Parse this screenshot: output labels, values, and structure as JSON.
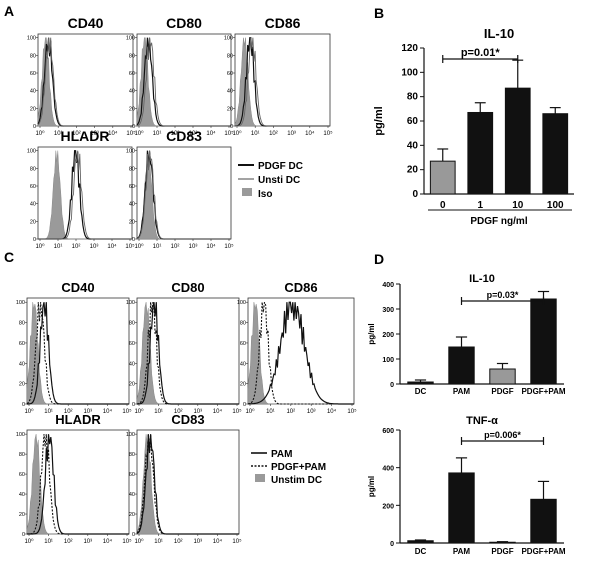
{
  "figure": {
    "panel_labels": {
      "A": "A",
      "B": "B",
      "C": "C",
      "D": "D"
    }
  },
  "chart_data": [
    {
      "panel": "A",
      "type": "histogram_overlay",
      "histogram_tick_labels": [
        "10⁰",
        "10¹",
        "10²",
        "10³",
        "10⁴",
        "10⁵"
      ],
      "y_tick_labels": [
        "0",
        "20",
        "40",
        "60",
        "80",
        "100"
      ],
      "legend": [
        {
          "label": "PDGF DC",
          "style": "black-thick",
          "color": "#111111"
        },
        {
          "label": "Unsti DC",
          "style": "gray-thin",
          "color": "#666666"
        },
        {
          "label": "Iso",
          "style": "gray-fill",
          "color": "#9a9a9a"
        }
      ],
      "plots": [
        {
          "marker": "CD40",
          "iso_peak_log": 0.4,
          "curves": [
            {
              "style": "black-thick",
              "peak_log": 0.55
            },
            {
              "style": "gray-thin",
              "peak_log": 0.6
            }
          ]
        },
        {
          "marker": "CD80",
          "iso_peak_log": 0.4,
          "curves": [
            {
              "style": "black-thick",
              "peak_log": 0.6
            },
            {
              "style": "gray-thin",
              "peak_log": 0.7
            }
          ]
        },
        {
          "marker": "CD86",
          "iso_peak_log": 0.5,
          "curves": [
            {
              "style": "black-thick",
              "peak_log": 0.8
            },
            {
              "style": "gray-thin",
              "peak_log": 0.9
            }
          ]
        },
        {
          "marker": "HLADR",
          "iso_peak_log": 1.0,
          "curves": [
            {
              "style": "black-thick",
              "peak_log": 2.0
            },
            {
              "style": "gray-thin",
              "peak_log": 2.1
            }
          ]
        },
        {
          "marker": "CD83",
          "iso_peak_log": 0.6,
          "curves": [
            {
              "style": "black-thick",
              "peak_log": 0.65
            },
            {
              "style": "gray-thin",
              "peak_log": 0.68
            }
          ]
        }
      ]
    },
    {
      "panel": "B",
      "type": "bar",
      "title": "IL-10",
      "xlabel": "PDGF ng/ml",
      "ylabel": "pg/ml",
      "categories": [
        "0",
        "1",
        "10",
        "100"
      ],
      "values": [
        27,
        67,
        87,
        66
      ],
      "errors": [
        10,
        8,
        23,
        5
      ],
      "bar_colors": [
        "#999999",
        "#111111",
        "#111111",
        "#111111"
      ],
      "ylim": [
        0,
        120
      ],
      "yticks": [
        0,
        20,
        40,
        60,
        80,
        100,
        120
      ],
      "annotation": {
        "text": "p=0.01*",
        "from": 0,
        "to": 2
      }
    },
    {
      "panel": "C",
      "type": "histogram_overlay",
      "histogram_tick_labels": [
        "10⁰",
        "10¹",
        "10²",
        "10³",
        "10⁴",
        "10⁵"
      ],
      "y_tick_labels": [
        "0",
        "20",
        "40",
        "60",
        "80",
        "100"
      ],
      "legend": [
        {
          "label": "PAM",
          "style": "solid",
          "color": "#111111"
        },
        {
          "label": "PDGF+PAM",
          "style": "dotted",
          "color": "#111111"
        },
        {
          "label": "Unstim DC",
          "style": "gray-fill",
          "color": "#9a9a9a"
        }
      ],
      "plots": [
        {
          "marker": "CD40",
          "iso_peak_log": 0.35,
          "curves": [
            {
              "style": "solid",
              "peak_log": 0.85
            },
            {
              "style": "dotted",
              "peak_log": 0.65
            }
          ]
        },
        {
          "marker": "CD80",
          "iso_peak_log": 0.45,
          "curves": [
            {
              "style": "solid",
              "peak_log": 0.85
            },
            {
              "style": "dotted",
              "peak_log": 0.75
            }
          ]
        },
        {
          "marker": "CD86",
          "iso_peak_log": 0.35,
          "curves": [
            {
              "style": "solid",
              "peak_log": 2.1
            },
            {
              "style": "dotted",
              "peak_log": 0.75
            }
          ]
        },
        {
          "marker": "HLADR",
          "iso_peak_log": 0.45,
          "curves": [
            {
              "style": "solid",
              "peak_log": 1.1
            },
            {
              "style": "dotted",
              "peak_log": 0.9
            }
          ]
        },
        {
          "marker": "CD83",
          "iso_peak_log": 0.5,
          "curves": [
            {
              "style": "solid",
              "peak_log": 0.65
            },
            {
              "style": "dotted",
              "peak_log": 0.6
            }
          ]
        }
      ]
    },
    {
      "panel": "D",
      "type": "bar",
      "title": "IL-10",
      "xlabel": "",
      "ylabel": "pg/ml",
      "categories": [
        "DC",
        "PAM",
        "PDGF",
        "PDGF+PAM"
      ],
      "values": [
        8,
        148,
        60,
        340
      ],
      "errors": [
        8,
        40,
        22,
        30
      ],
      "bar_colors": [
        "#111111",
        "#111111",
        "#999999",
        "#111111"
      ],
      "ylim": [
        0,
        400
      ],
      "yticks": [
        0,
        100,
        200,
        300,
        400
      ],
      "annotation": {
        "text": "p=0.03*",
        "from": 1,
        "to": 3
      }
    },
    {
      "panel": "D",
      "type": "bar",
      "title": "TNF-α",
      "xlabel": "",
      "ylabel": "pg/ml",
      "categories": [
        "DC",
        "PAM",
        "PDGF",
        "PDGF+PAM"
      ],
      "values": [
        12,
        372,
        4,
        232
      ],
      "errors": [
        4,
        80,
        3,
        95
      ],
      "bar_colors": [
        "#111111",
        "#111111",
        "#999999",
        "#111111"
      ],
      "ylim": [
        0,
        600
      ],
      "yticks": [
        0,
        200,
        400,
        600
      ],
      "annotation": {
        "text": "p=0.006*",
        "from": 1,
        "to": 3
      }
    }
  ]
}
